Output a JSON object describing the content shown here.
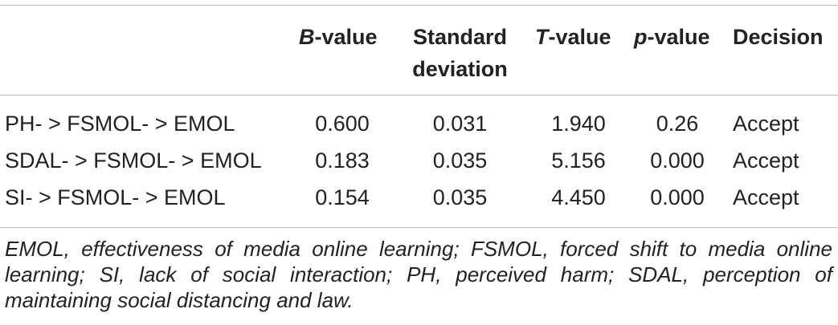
{
  "table": {
    "headers": {
      "b_value_italic": "B",
      "b_value_rest": "-value",
      "sd_line1": "Standard",
      "sd_line2": "deviation",
      "t_value_italic": "T",
      "t_value_rest": "-value",
      "p_value_italic": "p",
      "p_value_rest": "-value",
      "decision": "Decision"
    },
    "rows": [
      {
        "path": "PH- > FSMOL- > EMOL",
        "b": "0.600",
        "sd": "0.031",
        "t": "1.940",
        "p": "0.26",
        "decision": "Accept"
      },
      {
        "path": "SDAL- > FSMOL- > EMOL",
        "b": "0.183",
        "sd": "0.035",
        "t": "5.156",
        "p": "0.000",
        "decision": "Accept"
      },
      {
        "path": "SI- > FSMOL- > EMOL",
        "b": "0.154",
        "sd": "0.035",
        "t": "4.450",
        "p": "0.000",
        "decision": "Accept"
      }
    ]
  },
  "footnote": "EMOL, effectiveness of media online learning; FSMOL, forced shift to media online learning; SI, lack of social interaction; PH, perceived harm; SDAL, perception of maintaining social distancing and law."
}
